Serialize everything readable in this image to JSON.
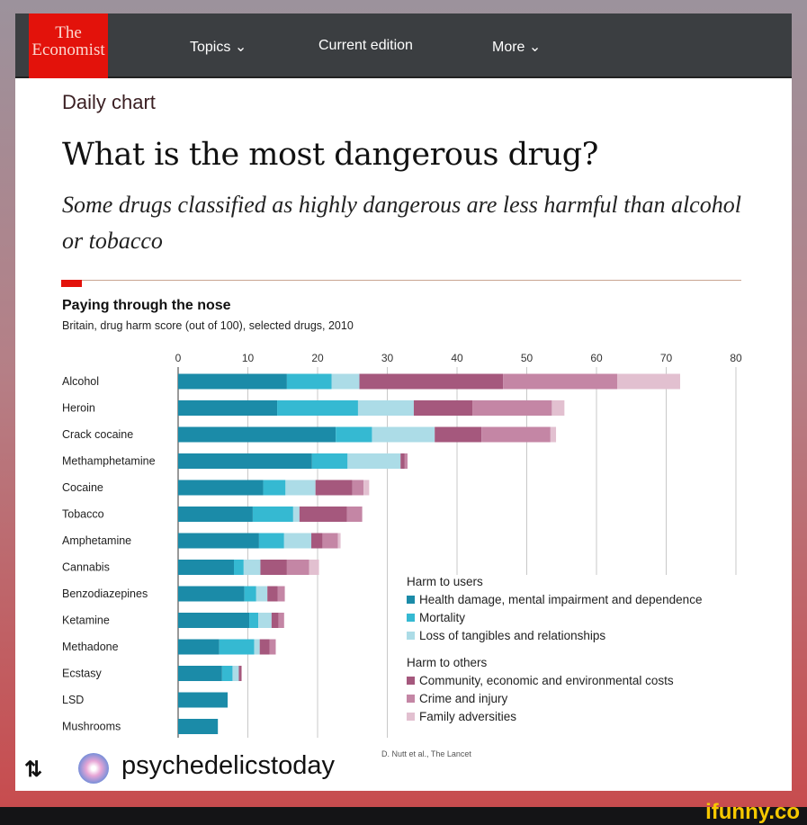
{
  "nav": {
    "logo_line1": "The",
    "logo_line2": "Economist",
    "topics": "Topics",
    "current_edition": "Current edition",
    "more": "More"
  },
  "article": {
    "section": "Daily chart",
    "title": "What is the most dangerous drug?",
    "subtitle": "Some drugs classified as highly dangerous are less harmful than alcohol or tobacco"
  },
  "chart_data": {
    "type": "bar",
    "orientation": "horizontal",
    "stacked": true,
    "title": "Paying through the nose",
    "subtitle": "Britain, drug harm score (out of 100), selected drugs, 2010",
    "xlim": [
      0,
      80
    ],
    "xticks": [
      "0",
      "10",
      "20",
      "30",
      "40",
      "50",
      "60",
      "70",
      "80"
    ],
    "grid": true,
    "categories": [
      "Alcohol",
      "Heroin",
      "Crack cocaine",
      "Methamphetamine",
      "Cocaine",
      "Tobacco",
      "Amphetamine",
      "Cannabis",
      "Benzodiazepines",
      "Ketamine",
      "Methadone",
      "Ecstasy",
      "LSD",
      "Mushrooms"
    ],
    "legend_groups": [
      "Harm to users",
      "Harm to others"
    ],
    "series": [
      {
        "name": "Health damage, mental impairment and dependence",
        "group": 0,
        "color": "#1b8ba8",
        "values": [
          15.6,
          14.2,
          22.6,
          19.2,
          12.2,
          10.7,
          11.6,
          8,
          9.5,
          10.2,
          5.9,
          6.3,
          7.1,
          5.7
        ]
      },
      {
        "name": "Mortality",
        "group": 0,
        "color": "#35b9d2",
        "values": [
          6.4,
          11.6,
          5.2,
          5.1,
          3.2,
          5.8,
          3.6,
          1.4,
          1.7,
          1.3,
          5,
          1.5,
          0,
          0
        ]
      },
      {
        "name": "Loss of tangibles and relationships",
        "group": 0,
        "color": "#acdce7",
        "values": [
          4,
          8,
          9,
          7.6,
          4.3,
          0.9,
          3.9,
          2.4,
          1.6,
          1.9,
          0.8,
          0.9,
          0,
          0
        ]
      },
      {
        "name": "Community, economic and environmental costs",
        "group": 1,
        "color": "#a5587d",
        "values": [
          20.6,
          8.4,
          6.7,
          0.6,
          5.3,
          6.8,
          1.6,
          3.8,
          1.5,
          1,
          1.4,
          0.4,
          0,
          0
        ]
      },
      {
        "name": "Crime and injury",
        "group": 1,
        "color": "#c486a5",
        "values": [
          16.4,
          11.4,
          9.9,
          0.4,
          1.6,
          2.2,
          2.2,
          3.2,
          1,
          0.8,
          0.9,
          0,
          0,
          0
        ]
      },
      {
        "name": "Family adversities",
        "group": 1,
        "color": "#e2c0d0",
        "values": [
          9,
          1.8,
          0.8,
          0,
          0.8,
          0,
          0.4,
          1.4,
          0,
          0,
          0,
          0,
          0,
          0
        ]
      }
    ],
    "source": "D. Nutt et al., The Lancet"
  },
  "repost": {
    "handle": "psychedelicstoday"
  },
  "watermark": "ifunny.co"
}
